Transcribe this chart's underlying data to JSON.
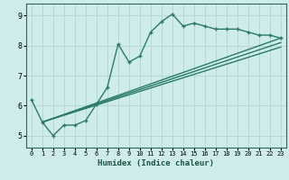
{
  "xlabel": "Humidex (Indice chaleur)",
  "bg_color": "#ceecea",
  "line_color": "#2a7a6a",
  "grid_color": "#b8d8d4",
  "xmin": -0.5,
  "xmax": 23.5,
  "ymin": 4.6,
  "ymax": 9.4,
  "yticks": [
    5,
    6,
    7,
    8,
    9
  ],
  "xticks": [
    0,
    1,
    2,
    3,
    4,
    5,
    6,
    7,
    8,
    9,
    10,
    11,
    12,
    13,
    14,
    15,
    16,
    17,
    18,
    19,
    20,
    21,
    22,
    23
  ],
  "main_x": [
    0,
    1,
    2,
    3,
    4,
    5,
    6,
    7,
    8,
    9,
    10,
    11,
    12,
    13,
    14,
    15,
    16,
    17,
    18,
    19,
    20,
    21,
    22,
    23
  ],
  "main_y": [
    6.2,
    5.45,
    5.0,
    5.35,
    5.35,
    5.5,
    6.05,
    6.6,
    8.05,
    7.45,
    7.65,
    8.45,
    8.8,
    9.05,
    8.65,
    8.75,
    8.65,
    8.55,
    8.55,
    8.55,
    8.45,
    8.35,
    8.35,
    8.25
  ],
  "line2_x": [
    1,
    23
  ],
  "line2_y": [
    5.45,
    8.25
  ],
  "line3_x": [
    1,
    23
  ],
  "line3_y": [
    5.45,
    8.1
  ],
  "line4_x": [
    1,
    23
  ],
  "line4_y": [
    5.45,
    7.95
  ]
}
